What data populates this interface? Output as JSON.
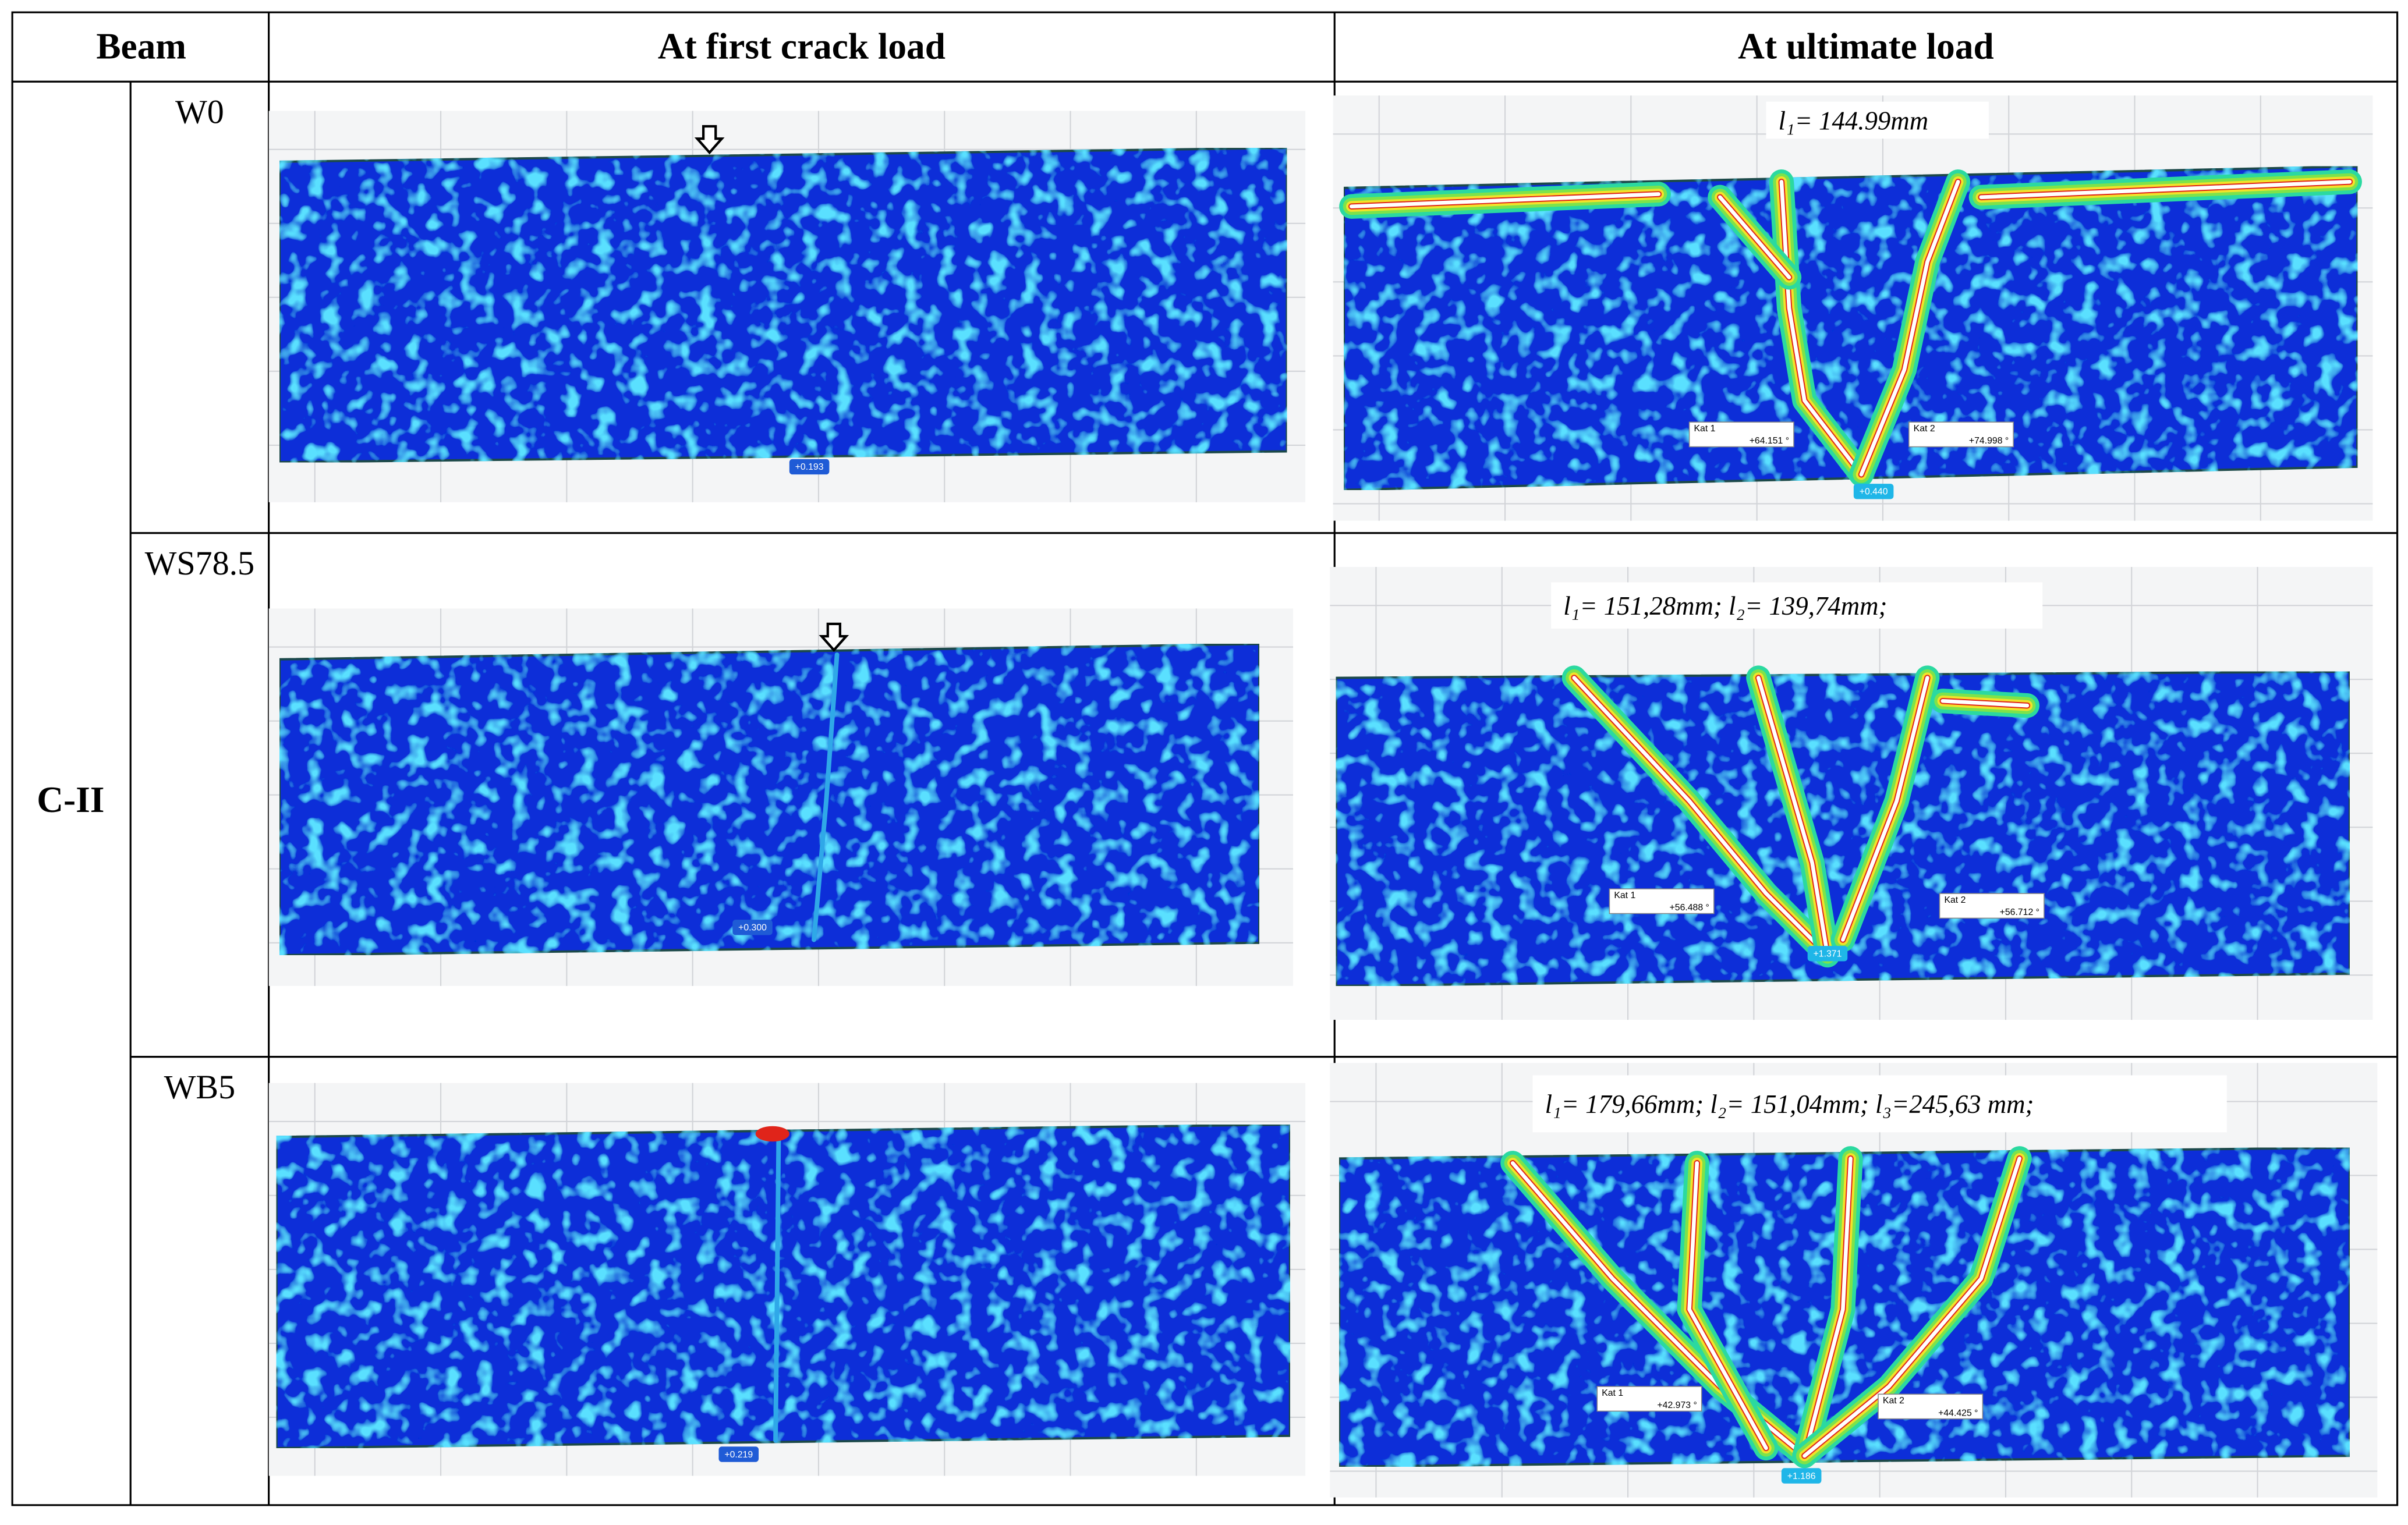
{
  "table": {
    "header": [
      "Beam",
      "At first crack load",
      "At ultimate load"
    ],
    "group": "C-II",
    "rows": [
      {
        "beam": "W0",
        "first_crack": {
          "value": "+0.193"
        },
        "ultimate": {
          "annotation": "l₁= 144.99mm",
          "value": "+0.440",
          "kat": [
            {
              "name": "Kat 1",
              "angle": "+64.151 °"
            },
            {
              "name": "Kat 2",
              "angle": "+74.998 °"
            }
          ]
        }
      },
      {
        "beam": "WS78.5",
        "first_crack": {
          "value": "+0.300"
        },
        "ultimate": {
          "annotation": "l₁= 151,28mm; l₂= 139,74mm;",
          "value": "+1.371",
          "kat": [
            {
              "name": "Kat 1",
              "angle": "+56.488 °"
            },
            {
              "name": "Kat 2",
              "angle": "+56.712 °"
            }
          ]
        }
      },
      {
        "beam": "WB5",
        "first_crack": {
          "value": "+0.219"
        },
        "ultimate": {
          "annotation": "l₁= 179,66mm; l₂= 151,04mm; l₃=245,63 mm;",
          "value": "+1.186",
          "kat": [
            {
              "name": "Kat 1",
              "angle": "+42.973 °"
            },
            {
              "name": "Kat 2",
              "angle": "+44.425 °"
            }
          ]
        }
      }
    ]
  }
}
